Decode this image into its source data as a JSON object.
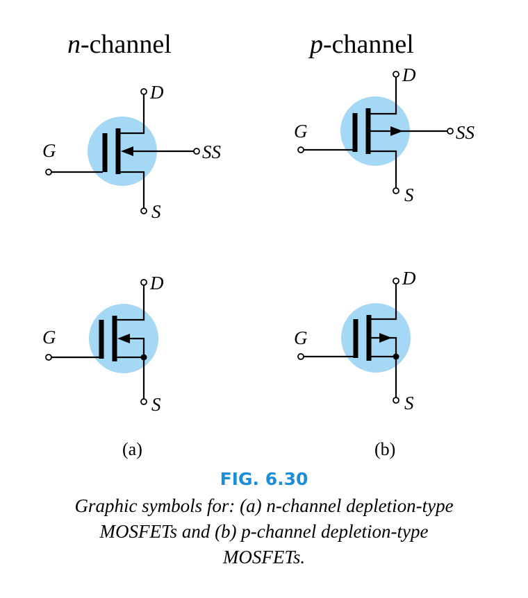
{
  "headers": {
    "n_channel": {
      "letter": "n",
      "rest": "-channel"
    },
    "p_channel": {
      "letter": "p",
      "rest": "-channel"
    }
  },
  "terminal_labels": {
    "drain": "D",
    "gate": "G",
    "source": "S",
    "substrate": "SS"
  },
  "sublabels": {
    "a": "(a)",
    "b": "(b)"
  },
  "figure": {
    "title": "FIG. 6.30",
    "caption_lines": [
      "Graphic symbols for: (a) n-channel depletion-type",
      "MOSFETs and (b) p-channel depletion-type",
      "MOSFETs."
    ]
  },
  "colors": {
    "highlight_circle": "#a5d8f5",
    "title_blue": "#1a8ed8",
    "line": "#000000"
  }
}
